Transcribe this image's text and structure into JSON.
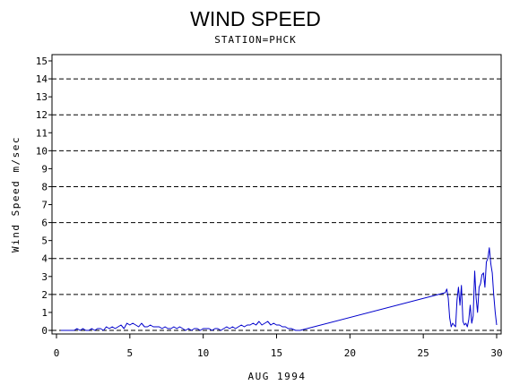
{
  "chart_data": {
    "type": "line",
    "title": "WIND SPEED",
    "subtitle": "STATION=PHCK",
    "xlabel": "AUG 1994",
    "ylabel": "Wind Speed m/sec",
    "xlim": [
      0,
      30
    ],
    "ylim": [
      0,
      15
    ],
    "x_ticks": [
      0,
      5,
      10,
      15,
      20,
      25,
      30
    ],
    "y_ticks": [
      0,
      1,
      2,
      3,
      4,
      5,
      6,
      7,
      8,
      9,
      10,
      11,
      12,
      13,
      14,
      15
    ],
    "y_gridlines": [
      0,
      2,
      4,
      6,
      8,
      10,
      12,
      14
    ],
    "grid_style": "dashed",
    "line_color": "#0000cc",
    "series": [
      {
        "x": [
          0.3,
          0.8,
          1.2,
          1.4,
          1.6,
          1.8,
          2.0,
          2.2,
          2.4,
          2.6,
          2.8,
          3.0,
          3.2,
          3.4,
          3.6,
          3.8,
          4.0,
          4.2,
          4.4,
          4.6,
          4.8,
          5.0,
          5.2,
          5.4,
          5.6,
          5.8,
          6.0,
          6.2,
          6.4,
          6.6,
          6.8,
          7.0,
          7.2,
          7.4,
          7.6,
          7.8,
          8.0,
          8.2,
          8.4,
          8.6,
          8.8,
          9.0,
          9.2,
          9.4,
          9.6,
          9.8,
          10.0,
          10.2,
          10.4,
          10.6,
          10.8,
          11.0,
          11.2,
          11.4,
          11.6,
          11.8,
          12.0,
          12.2,
          12.4,
          12.6,
          12.8,
          13.0,
          13.2,
          13.4,
          13.6,
          13.8,
          14.0,
          14.2,
          14.4,
          14.6,
          14.8,
          15.0,
          15.2,
          15.4,
          15.6,
          15.8,
          16.0,
          16.3,
          16.6,
          26.5,
          26.6,
          26.7,
          26.8,
          26.9,
          27.0,
          27.1,
          27.2,
          27.3,
          27.4,
          27.5,
          27.6,
          27.7,
          27.8,
          27.9,
          28.0,
          28.1,
          28.2,
          28.3,
          28.4,
          28.5,
          28.6,
          28.7,
          28.8,
          28.9,
          29.0,
          29.1,
          29.2,
          29.3,
          29.4,
          29.5,
          29.6,
          29.7,
          29.8,
          29.9,
          30.0
        ],
        "values": [
          0.0,
          0.0,
          0.0,
          0.1,
          0.0,
          0.1,
          0.0,
          0.0,
          0.1,
          0.0,
          0.1,
          0.1,
          0.0,
          0.2,
          0.1,
          0.2,
          0.1,
          0.2,
          0.3,
          0.1,
          0.4,
          0.3,
          0.4,
          0.3,
          0.2,
          0.4,
          0.2,
          0.2,
          0.3,
          0.2,
          0.2,
          0.2,
          0.1,
          0.2,
          0.1,
          0.1,
          0.2,
          0.1,
          0.2,
          0.1,
          0.0,
          0.1,
          0.0,
          0.1,
          0.1,
          0.0,
          0.1,
          0.1,
          0.1,
          0.0,
          0.1,
          0.1,
          0.0,
          0.1,
          0.2,
          0.1,
          0.2,
          0.1,
          0.2,
          0.3,
          0.2,
          0.3,
          0.3,
          0.4,
          0.3,
          0.5,
          0.3,
          0.4,
          0.5,
          0.3,
          0.4,
          0.3,
          0.3,
          0.2,
          0.2,
          0.1,
          0.1,
          0.0,
          0.0,
          2.1,
          2.3,
          1.8,
          0.7,
          0.2,
          0.4,
          0.3,
          0.2,
          1.7,
          2.4,
          1.4,
          2.5,
          0.5,
          0.3,
          0.4,
          0.2,
          0.6,
          1.4,
          0.4,
          0.8,
          3.3,
          1.8,
          1.0,
          2.4,
          2.6,
          3.1,
          3.2,
          2.4,
          3.8,
          4.0,
          4.6,
          3.7,
          3.2,
          2.0,
          1.0,
          0.3
        ]
      }
    ]
  }
}
